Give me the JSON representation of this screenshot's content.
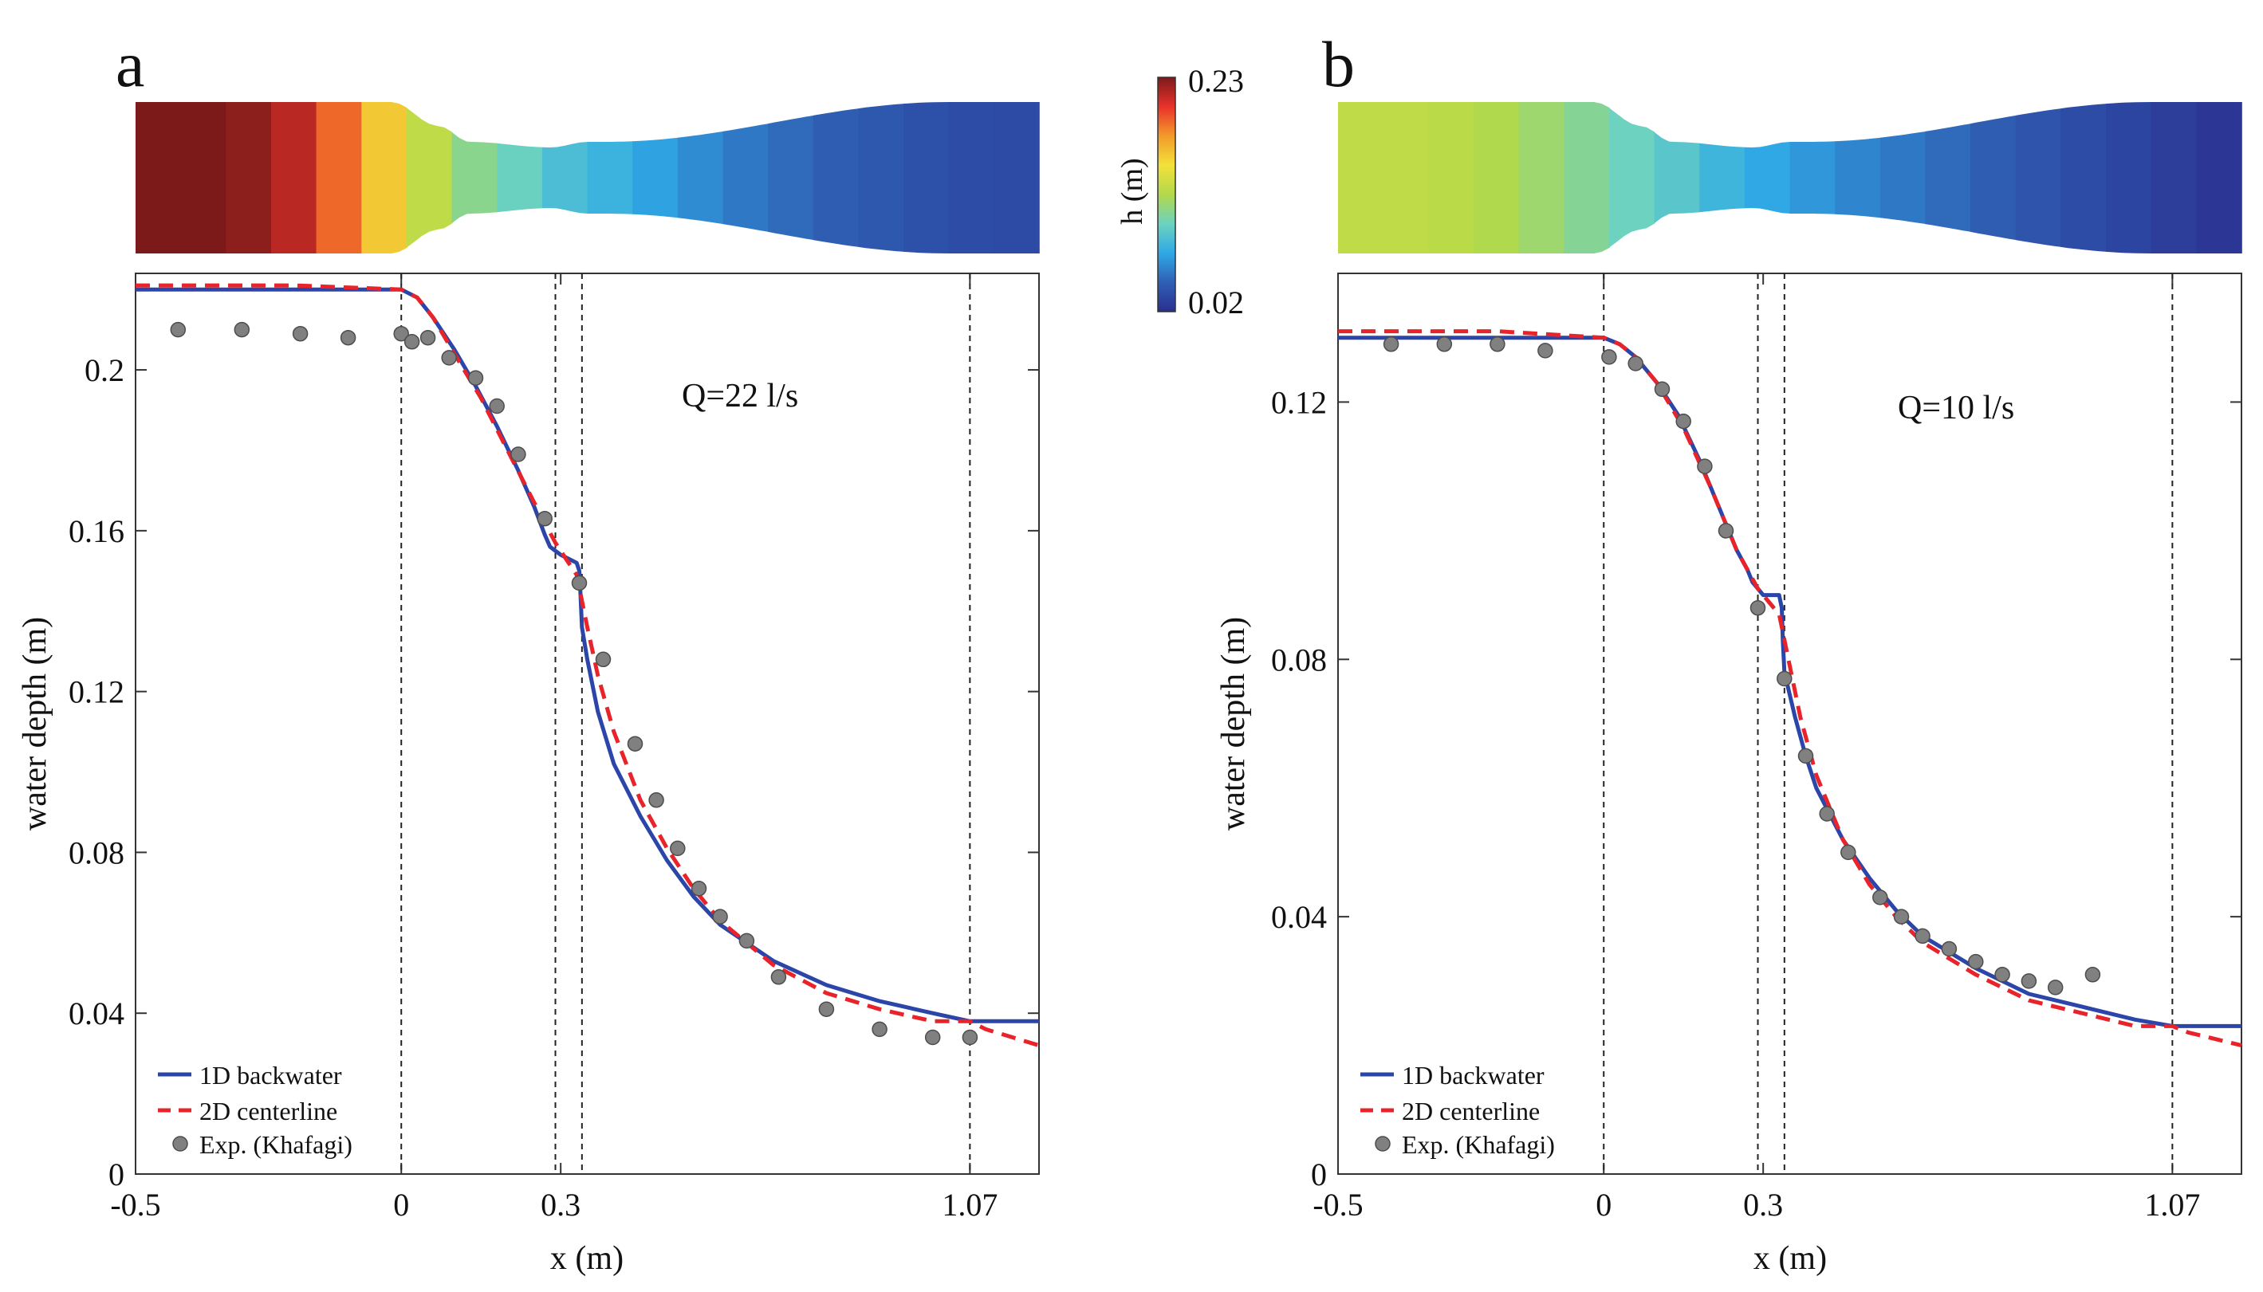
{
  "colorbar": {
    "label": "h (m)",
    "max_label": "0.23",
    "min_label": "0.02",
    "colors": [
      "#2a2f8f",
      "#2f5fb4",
      "#2fa9e6",
      "#6cd2c0",
      "#b3d94a",
      "#f2e13a",
      "#f39a2a",
      "#e8322a",
      "#7c1a1a"
    ]
  },
  "colors": {
    "backwater": "#2b45a8",
    "centerline": "#e8232a",
    "experiment": "#808080",
    "axis": "#333333"
  },
  "chart_data": [
    {
      "type": "line",
      "panel_label": "a",
      "annotation": "Q=22 l/s",
      "xlabel": "x (m)",
      "ylabel": "water depth (m)",
      "xlim": [
        -0.5,
        1.2
      ],
      "ylim": [
        0,
        0.224
      ],
      "x_ticks": [
        -0.5,
        0,
        0.3,
        1.07
      ],
      "x_tick_labels": [
        "-0.5",
        "0",
        "0.3",
        "1.07"
      ],
      "y_ticks": [
        0,
        0.04,
        0.08,
        0.12,
        0.16,
        0.2
      ],
      "y_tick_labels": [
        "0",
        "0.04",
        "0.08",
        "0.12",
        "0.16",
        "0.2"
      ],
      "vlines": [
        0,
        0.29,
        0.34,
        1.07
      ],
      "legend": [
        "1D backwater",
        "2D centerline",
        "Exp. (Khafagi)"
      ],
      "legend_position": "bottom-left",
      "colormap_levels": [
        0.23,
        0.23,
        0.226,
        0.215,
        0.19,
        0.16,
        0.13,
        0.11,
        0.098,
        0.085,
        0.078,
        0.07,
        0.062,
        0.055,
        0.05,
        0.045,
        0.042,
        0.038,
        0.036,
        0.035
      ],
      "series": [
        {
          "name": "1D backwater",
          "style": "solid",
          "x": [
            -0.5,
            -0.3,
            -0.1,
            0.0,
            0.03,
            0.06,
            0.1,
            0.14,
            0.18,
            0.22,
            0.25,
            0.27,
            0.28,
            0.29,
            0.3,
            0.33,
            0.335,
            0.337,
            0.34,
            0.35,
            0.37,
            0.4,
            0.45,
            0.5,
            0.55,
            0.6,
            0.7,
            0.8,
            0.9,
            1.0,
            1.07,
            1.2
          ],
          "y": [
            0.22,
            0.22,
            0.22,
            0.22,
            0.218,
            0.213,
            0.205,
            0.196,
            0.186,
            0.175,
            0.166,
            0.159,
            0.156,
            0.155,
            0.154,
            0.152,
            0.15,
            0.145,
            0.136,
            0.128,
            0.115,
            0.102,
            0.089,
            0.078,
            0.069,
            0.062,
            0.053,
            0.047,
            0.043,
            0.04,
            0.038,
            0.038
          ]
        },
        {
          "name": "2D centerline",
          "style": "dashed",
          "x": [
            -0.5,
            -0.2,
            0.0,
            0.03,
            0.06,
            0.1,
            0.15,
            0.2,
            0.25,
            0.29,
            0.31,
            0.33,
            0.35,
            0.37,
            0.4,
            0.45,
            0.5,
            0.55,
            0.6,
            0.7,
            0.8,
            0.9,
            1.0,
            1.07,
            1.1,
            1.2
          ],
          "y": [
            0.221,
            0.221,
            0.22,
            0.218,
            0.213,
            0.204,
            0.193,
            0.18,
            0.167,
            0.157,
            0.153,
            0.149,
            0.136,
            0.124,
            0.11,
            0.093,
            0.081,
            0.071,
            0.063,
            0.052,
            0.045,
            0.041,
            0.038,
            0.038,
            0.036,
            0.032
          ]
        },
        {
          "name": "Exp. (Khafagi)",
          "style": "markers",
          "x": [
            -0.42,
            -0.3,
            -0.19,
            -0.1,
            0.0,
            0.02,
            0.05,
            0.09,
            0.14,
            0.18,
            0.22,
            0.27,
            0.335,
            0.38,
            0.44,
            0.48,
            0.52,
            0.56,
            0.6,
            0.65,
            0.71,
            0.8,
            0.9,
            1.0,
            1.07
          ],
          "y": [
            0.21,
            0.21,
            0.209,
            0.208,
            0.209,
            0.207,
            0.208,
            0.203,
            0.198,
            0.191,
            0.179,
            0.163,
            0.147,
            0.128,
            0.107,
            0.093,
            0.081,
            0.071,
            0.064,
            0.058,
            0.049,
            0.041,
            0.036,
            0.034,
            0.034
          ]
        }
      ]
    },
    {
      "type": "line",
      "panel_label": "b",
      "annotation": "Q=10 l/s",
      "xlabel": "x (m)",
      "ylabel": "water depth (m)",
      "xlim": [
        -0.5,
        1.2
      ],
      "ylim": [
        0,
        0.14
      ],
      "x_ticks": [
        -0.5,
        0,
        0.3,
        1.07
      ],
      "x_tick_labels": [
        "-0.5",
        "0",
        "0.3",
        "1.07"
      ],
      "y_ticks": [
        0,
        0.04,
        0.08,
        0.12
      ],
      "y_tick_labels": [
        "0",
        "0.04",
        "0.08",
        "0.12"
      ],
      "vlines": [
        0,
        0.29,
        0.34,
        1.07
      ],
      "legend": [
        "1D backwater",
        "2D centerline",
        "Exp. (Khafagi)"
      ],
      "legend_position": "bottom-left",
      "colormap_levels": [
        0.13,
        0.13,
        0.128,
        0.124,
        0.117,
        0.108,
        0.099,
        0.091,
        0.08,
        0.072,
        0.066,
        0.06,
        0.055,
        0.05,
        0.045,
        0.04,
        0.036,
        0.032,
        0.028,
        0.024
      ],
      "series": [
        {
          "name": "1D backwater",
          "style": "solid",
          "x": [
            -0.5,
            -0.3,
            -0.1,
            0.0,
            0.03,
            0.06,
            0.1,
            0.14,
            0.18,
            0.22,
            0.25,
            0.27,
            0.28,
            0.29,
            0.3,
            0.33,
            0.335,
            0.337,
            0.34,
            0.36,
            0.38,
            0.4,
            0.45,
            0.5,
            0.55,
            0.6,
            0.7,
            0.8,
            0.9,
            1.0,
            1.07,
            1.2
          ],
          "y": [
            0.13,
            0.13,
            0.13,
            0.13,
            0.129,
            0.127,
            0.123,
            0.118,
            0.111,
            0.103,
            0.097,
            0.094,
            0.092,
            0.091,
            0.09,
            0.09,
            0.088,
            0.083,
            0.078,
            0.071,
            0.065,
            0.06,
            0.052,
            0.046,
            0.041,
            0.037,
            0.032,
            0.028,
            0.026,
            0.024,
            0.023,
            0.023
          ]
        },
        {
          "name": "2D centerline",
          "style": "dashed",
          "x": [
            -0.5,
            -0.2,
            0.0,
            0.03,
            0.06,
            0.1,
            0.15,
            0.2,
            0.25,
            0.29,
            0.31,
            0.33,
            0.35,
            0.37,
            0.4,
            0.45,
            0.5,
            0.55,
            0.6,
            0.7,
            0.8,
            0.9,
            1.0,
            1.07,
            1.1,
            1.2
          ],
          "y": [
            0.131,
            0.131,
            0.13,
            0.129,
            0.127,
            0.123,
            0.116,
            0.107,
            0.097,
            0.091,
            0.089,
            0.087,
            0.079,
            0.071,
            0.062,
            0.052,
            0.045,
            0.04,
            0.036,
            0.031,
            0.027,
            0.025,
            0.023,
            0.023,
            0.022,
            0.02
          ]
        },
        {
          "name": "Exp. (Khafagi)",
          "style": "markers",
          "x": [
            -0.4,
            -0.3,
            -0.2,
            -0.11,
            0.01,
            0.06,
            0.11,
            0.15,
            0.19,
            0.23,
            0.29,
            0.34,
            0.38,
            0.42,
            0.46,
            0.52,
            0.56,
            0.6,
            0.65,
            0.7,
            0.75,
            0.8,
            0.85,
            0.92
          ],
          "y": [
            0.129,
            0.129,
            0.129,
            0.128,
            0.127,
            0.126,
            0.122,
            0.117,
            0.11,
            0.1,
            0.088,
            0.077,
            0.065,
            0.056,
            0.05,
            0.043,
            0.04,
            0.037,
            0.035,
            0.033,
            0.031,
            0.03,
            0.029,
            0.031
          ]
        }
      ]
    }
  ]
}
